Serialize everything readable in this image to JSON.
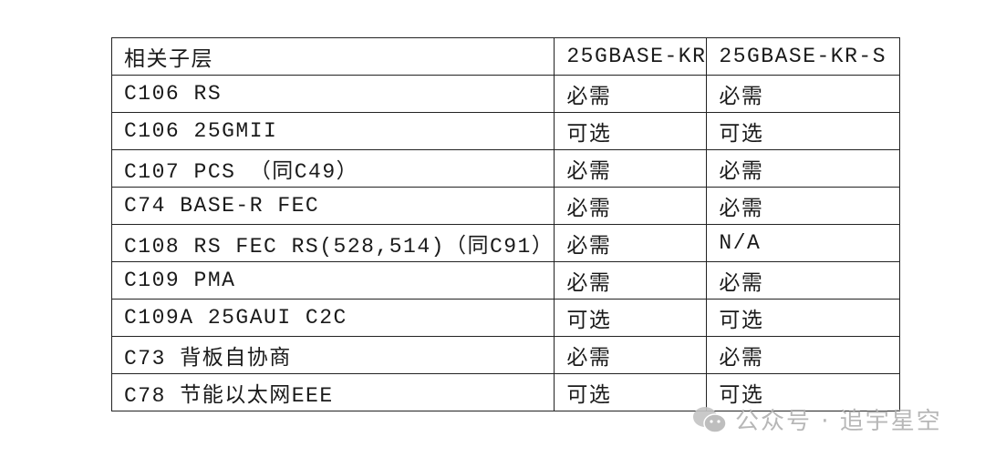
{
  "table": {
    "headers": [
      "相关子层",
      "25GBASE-KR",
      "25GBASE-KR-S"
    ],
    "rows": [
      [
        "C106 RS",
        "必需",
        "必需"
      ],
      [
        "C106 25GMII",
        "可选",
        "可选"
      ],
      [
        "C107 PCS （同C49）",
        "必需",
        "必需"
      ],
      [
        "C74 BASE-R FEC",
        "必需",
        "必需"
      ],
      [
        "C108 RS FEC RS(528,514)（同C91）",
        "必需",
        "N/A"
      ],
      [
        "C109 PMA",
        "必需",
        "必需"
      ],
      [
        "C109A 25GAUI C2C",
        "可选",
        "可选"
      ],
      [
        "C73 背板自协商",
        "必需",
        "必需"
      ],
      [
        "C78 节能以太网EEE",
        "可选",
        "可选"
      ]
    ]
  },
  "watermark": {
    "icon": "wechat-icon",
    "text": "公众号 · 追宇星空"
  }
}
